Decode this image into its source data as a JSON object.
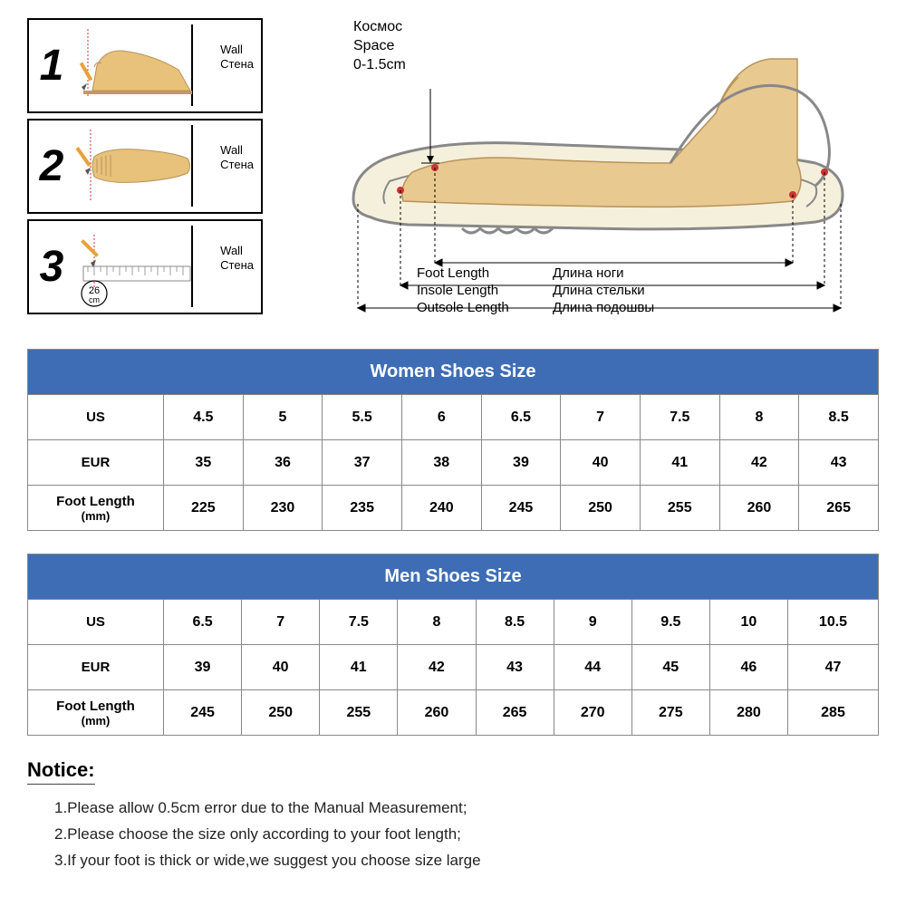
{
  "steps": [
    {
      "num": "1",
      "wall_en": "Wall",
      "wall_ru": "Стена"
    },
    {
      "num": "2",
      "wall_en": "Wall",
      "wall_ru": "Стена"
    },
    {
      "num": "3",
      "wall_en": "Wall",
      "wall_ru": "Стена",
      "ruler_val": "26",
      "ruler_unit": "cm"
    }
  ],
  "diagram": {
    "space_ru": "Космос",
    "space_en": "Space",
    "space_val": "0-1.5cm",
    "dims": [
      {
        "en": "Foot Length",
        "ru": "Длина ноги"
      },
      {
        "en": "Insole Length",
        "ru": "Длина стельки"
      },
      {
        "en": "Outsole Length",
        "ru": "Длина подошвы"
      }
    ]
  },
  "tables": [
    {
      "title": "Women Shoes Size",
      "rows": [
        {
          "label": "US",
          "sub": "",
          "values": [
            "4.5",
            "5",
            "5.5",
            "6",
            "6.5",
            "7",
            "7.5",
            "8",
            "8.5"
          ]
        },
        {
          "label": "EUR",
          "sub": "",
          "values": [
            "35",
            "36",
            "37",
            "38",
            "39",
            "40",
            "41",
            "42",
            "43"
          ]
        },
        {
          "label": "Foot Length",
          "sub": "(mm)",
          "values": [
            "225",
            "230",
            "235",
            "240",
            "245",
            "250",
            "255",
            "260",
            "265"
          ]
        }
      ]
    },
    {
      "title": "Men Shoes Size",
      "rows": [
        {
          "label": "US",
          "sub": "",
          "values": [
            "6.5",
            "7",
            "7.5",
            "8",
            "8.5",
            "9",
            "9.5",
            "10",
            "10.5"
          ]
        },
        {
          "label": "EUR",
          "sub": "",
          "values": [
            "39",
            "40",
            "41",
            "42",
            "43",
            "44",
            "45",
            "46",
            "47"
          ]
        },
        {
          "label": "Foot Length",
          "sub": "(mm)",
          "values": [
            "245",
            "250",
            "255",
            "260",
            "265",
            "270",
            "275",
            "280",
            "285"
          ]
        }
      ]
    }
  ],
  "notice": {
    "title": "Notice:",
    "items": [
      "1.Please allow 0.5cm error due to the Manual Measurement;",
      "2.Please choose the size only according to your foot length;",
      "3.If your foot is thick or wide,we suggest  you  choose size large"
    ]
  },
  "colors": {
    "header_bg": "#3e6db5",
    "header_text": "#ffffff",
    "border": "#888888",
    "foot_fill": "#e8c17a",
    "shoe_outline": "#888888",
    "shoe_fill": "#f5f0dc",
    "pencil": "#e8a23a",
    "red_line": "#cc3333"
  }
}
